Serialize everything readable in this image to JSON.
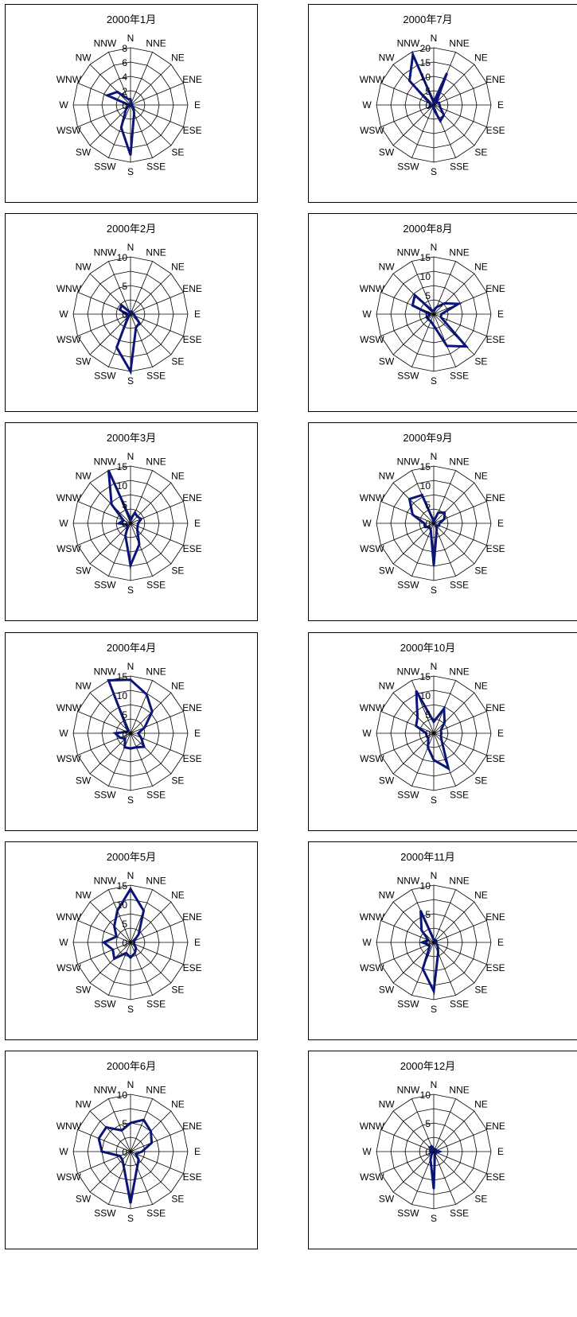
{
  "chart_data": [
    {
      "type": "radar",
      "title": "2000年1月",
      "directions": [
        "N",
        "NNE",
        "NE",
        "ENE",
        "E",
        "ESE",
        "SE",
        "SSE",
        "S",
        "SSW",
        "SW",
        "WSW",
        "W",
        "WNW",
        "NW",
        "NNW"
      ],
      "tick_labels": [
        "0",
        "2",
        "4",
        "6",
        "8"
      ],
      "rmax": 8,
      "values": [
        0.8,
        0.3,
        0.2,
        0.1,
        0.2,
        0.2,
        0.6,
        1.3,
        7.0,
        3.4,
        0.9,
        0.3,
        0.2,
        3.5,
        2.6,
        0.9
      ],
      "line_color": "#0b1577"
    },
    {
      "type": "radar",
      "title": "2000年7月",
      "directions": [
        "N",
        "NNE",
        "NE",
        "ENE",
        "E",
        "ESE",
        "SE",
        "SSE",
        "S",
        "SSW",
        "SW",
        "WSW",
        "W",
        "WNW",
        "NW",
        "NNW"
      ],
      "tick_labels": [
        "0",
        "5",
        "10",
        "15",
        "20"
      ],
      "rmax": 20,
      "values": [
        1.0,
        12.0,
        1.2,
        2.0,
        2.0,
        2.5,
        5.0,
        6.0,
        1.5,
        0.5,
        0.5,
        1.5,
        1.0,
        1.5,
        12.0,
        19.0
      ],
      "line_color": "#0b1577"
    },
    {
      "type": "radar",
      "title": "2000年2月",
      "directions": [
        "N",
        "NNE",
        "NE",
        "ENE",
        "E",
        "ESE",
        "SE",
        "SSE",
        "S",
        "SSW",
        "SW",
        "WSW",
        "W",
        "WNW",
        "NW",
        "NNW"
      ],
      "tick_labels": [
        "0",
        "5",
        "10"
      ],
      "rmax": 10,
      "values": [
        0.4,
        0.5,
        0.4,
        0.3,
        0.6,
        0.8,
        2.2,
        2.5,
        10.0,
        6.3,
        0.6,
        0.3,
        0.8,
        2.0,
        2.2,
        0.4
      ],
      "line_color": "#0b1577"
    },
    {
      "type": "radar",
      "title": "2000年8月",
      "directions": [
        "N",
        "NNE",
        "NE",
        "ENE",
        "E",
        "ESE",
        "SE",
        "SSE",
        "S",
        "SSW",
        "SW",
        "WSW",
        "W",
        "WNW",
        "NW",
        "NNW"
      ],
      "tick_labels": [
        "0",
        "5",
        "10",
        "15"
      ],
      "rmax": 15,
      "values": [
        1.0,
        2.0,
        4.0,
        7.0,
        2.0,
        2.0,
        12.0,
        9.0,
        3.0,
        2.0,
        2.0,
        2.0,
        1.0,
        6.0,
        7.0,
        1.0
      ],
      "line_color": "#0b1577"
    },
    {
      "type": "radar",
      "title": "2000年3月",
      "directions": [
        "N",
        "NNE",
        "NE",
        "ENE",
        "E",
        "ESE",
        "SE",
        "SSE",
        "S",
        "SSW",
        "SW",
        "WSW",
        "W",
        "WNW",
        "NW",
        "NNW"
      ],
      "tick_labels": [
        "0",
        "5",
        "10",
        "15"
      ],
      "rmax": 15,
      "values": [
        1.0,
        3.0,
        2.5,
        3.0,
        2.0,
        2.0,
        2.5,
        6.0,
        11.0,
        3.5,
        1.0,
        1.0,
        3.0,
        2.0,
        7.0,
        15.5
      ],
      "line_color": "#0b1577"
    },
    {
      "type": "radar",
      "title": "2000年9月",
      "directions": [
        "N",
        "NNE",
        "NE",
        "ENE",
        "E",
        "ESE",
        "SE",
        "SSE",
        "S",
        "SSW",
        "SW",
        "WSW",
        "W",
        "WNW",
        "NW",
        "NNW"
      ],
      "tick_labels": [
        "0",
        "5",
        "10",
        "15"
      ],
      "rmax": 15,
      "values": [
        0.5,
        3.0,
        4.0,
        3.0,
        1.5,
        1.5,
        1.0,
        2.0,
        11.0,
        2.0,
        1.5,
        2.5,
        2.5,
        6.0,
        9.0,
        8.0
      ],
      "line_color": "#0b1577"
    },
    {
      "type": "radar",
      "title": "2000年4月",
      "directions": [
        "N",
        "NNE",
        "NE",
        "ENE",
        "E",
        "ESE",
        "SE",
        "SSE",
        "S",
        "SSW",
        "SW",
        "WSW",
        "W",
        "WNW",
        "NW",
        "NNW"
      ],
      "tick_labels": [
        "0",
        "5",
        "10",
        "15"
      ],
      "rmax": 15,
      "values": [
        14.0,
        11.0,
        8.0,
        4.0,
        2.0,
        3.0,
        5.0,
        4.0,
        4.0,
        4.0,
        2.0,
        3.0,
        4.0,
        1.0,
        1.0,
        16.0
      ],
      "line_color": "#0b1577"
    },
    {
      "type": "radar",
      "title": "2000年10月",
      "directions": [
        "N",
        "NNE",
        "NE",
        "ENE",
        "E",
        "ESE",
        "SE",
        "SSE",
        "S",
        "SSW",
        "SW",
        "WSW",
        "W",
        "WNW",
        "NW",
        "NNW"
      ],
      "tick_labels": [
        "0",
        "5",
        "10",
        "15"
      ],
      "rmax": 15,
      "values": [
        3.0,
        7.0,
        4.0,
        2.0,
        2.0,
        2.0,
        3.0,
        10.0,
        7.0,
        4.0,
        2.0,
        2.0,
        2.0,
        5.0,
        6.0,
        12.0
      ],
      "line_color": "#0b1577"
    },
    {
      "type": "radar",
      "title": "2000年5月",
      "directions": [
        "N",
        "NNE",
        "NE",
        "ENE",
        "E",
        "ESE",
        "SE",
        "SSE",
        "S",
        "SSW",
        "SW",
        "WSW",
        "W",
        "WNW",
        "NW",
        "NNW"
      ],
      "tick_labels": [
        "0",
        "5",
        "10",
        "15"
      ],
      "rmax": 15,
      "values": [
        14.0,
        9.0,
        3.0,
        1.0,
        1.0,
        1.0,
        2.0,
        3.0,
        4.0,
        3.0,
        6.0,
        5.0,
        7.0,
        4.0,
        6.0,
        9.0
      ],
      "line_color": "#0b1577"
    },
    {
      "type": "radar",
      "title": "2000年11月",
      "directions": [
        "N",
        "NNE",
        "NE",
        "ENE",
        "E",
        "ESE",
        "SE",
        "SSE",
        "S",
        "SSW",
        "SW",
        "WSW",
        "W",
        "WNW",
        "NW",
        "NNW"
      ],
      "tick_labels": [
        "0",
        "5",
        "10"
      ],
      "rmax": 10,
      "values": [
        0.5,
        0.5,
        0.5,
        0.5,
        0.3,
        0.5,
        1.0,
        2.0,
        8.5,
        5.0,
        1.0,
        1.0,
        2.0,
        1.0,
        3.0,
        6.0
      ],
      "line_color": "#0b1577"
    },
    {
      "type": "radar",
      "title": "2000年6月",
      "directions": [
        "N",
        "NNE",
        "NE",
        "ENE",
        "E",
        "ESE",
        "SE",
        "SSE",
        "S",
        "SSW",
        "SW",
        "WSW",
        "W",
        "WNW",
        "NW",
        "NNW"
      ],
      "tick_labels": [
        "0",
        "5",
        "10"
      ],
      "rmax": 10,
      "values": [
        5.0,
        6.0,
        5.0,
        4.0,
        2.0,
        1.0,
        2.0,
        3.0,
        9.0,
        3.0,
        2.0,
        2.0,
        5.0,
        6.0,
        6.0,
        4.0
      ],
      "line_color": "#0b1577"
    },
    {
      "type": "radar",
      "title": "2000年12月",
      "directions": [
        "N",
        "NNE",
        "NE",
        "ENE",
        "E",
        "ESE",
        "SE",
        "SSE",
        "S",
        "SSW",
        "SW",
        "WSW",
        "W",
        "WNW",
        "NW",
        "NNW"
      ],
      "tick_labels": [
        "0",
        "5",
        "10"
      ],
      "rmax": 10,
      "values": [
        0.5,
        0.3,
        0.5,
        0.5,
        1.0,
        0.5,
        0.5,
        0.5,
        6.5,
        1.5,
        0.5,
        0.5,
        0.5,
        0.3,
        1.0,
        1.0
      ],
      "line_color": "#0b1577"
    }
  ]
}
